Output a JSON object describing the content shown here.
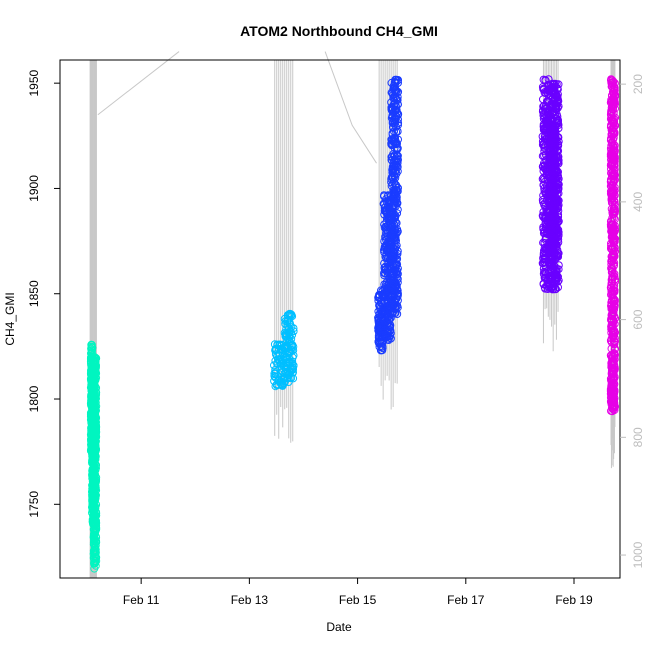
{
  "chart_data": {
    "type": "scatter",
    "title": "ATOM2 Northbound CH4_GMI",
    "xlabel": "Date",
    "ylabel": "CH4_GMI",
    "x_ticks": [
      "Feb 11",
      "Feb 13",
      "Feb 15",
      "Feb 17",
      "Feb 19"
    ],
    "x_tick_values_days": [
      11,
      13,
      15,
      17,
      19
    ],
    "xlim_days": [
      9.5,
      19.85
    ],
    "ylim": [
      1715,
      1961
    ],
    "y_ticks": [
      1750,
      1800,
      1850,
      1900,
      1950
    ],
    "right_axis": {
      "ticks": [
        200,
        400,
        600,
        800,
        1000
      ],
      "lim": [
        1039,
        159
      ],
      "color": "#bdbdbd"
    },
    "grid": false,
    "series": [
      {
        "color": "#00f5c0",
        "x_range_days": [
          10.05,
          10.18
        ],
        "y_range": [
          1719,
          1826
        ],
        "segments": [
          {
            "x": [
              10.07,
              10.1
            ],
            "y": [
              1775,
              1826
            ]
          },
          {
            "x": [
              10.09,
              10.13
            ],
            "y": [
              1740,
              1812
            ]
          },
          {
            "x": [
              10.12,
              10.17
            ],
            "y": [
              1719,
              1820
            ]
          }
        ]
      },
      {
        "color": "#00bfff",
        "x_range_days": [
          13.45,
          13.82
        ],
        "y_range": [
          1806,
          1841
        ],
        "segments": [
          {
            "x": [
              13.45,
              13.65
            ],
            "y": [
              1806,
              1826
            ]
          },
          {
            "x": [
              13.65,
              13.82
            ],
            "y": [
              1808,
              1841
            ]
          }
        ]
      },
      {
        "color": "#1a3cff",
        "x_range_days": [
          15.38,
          15.75
        ],
        "y_range": [
          1823,
          1952
        ],
        "segments": [
          {
            "x": [
              15.38,
              15.48
            ],
            "y": [
              1823,
              1852
            ]
          },
          {
            "x": [
              15.48,
              15.62
            ],
            "y": [
              1828,
              1897
            ]
          },
          {
            "x": [
              15.62,
              15.75
            ],
            "y": [
              1840,
              1952
            ]
          }
        ]
      },
      {
        "color": "#6a00ff",
        "x_range_days": [
          18.42,
          18.72
        ],
        "y_range": [
          1852,
          1952
        ],
        "segments": [
          {
            "x": [
              18.42,
              18.6
            ],
            "y": [
              1852,
              1952
            ]
          },
          {
            "x": [
              18.55,
              18.65
            ],
            "y": [
              1862,
              1930
            ]
          },
          {
            "x": [
              18.6,
              18.72
            ],
            "y": [
              1852,
              1950
            ]
          }
        ]
      },
      {
        "color": "#e600e6",
        "x_range_days": [
          19.68,
          19.76
        ],
        "y_range": [
          1794,
          1952
        ],
        "segments": [
          {
            "x": [
              19.68,
              19.76
            ],
            "y": [
              1794,
              1952
            ]
          }
        ]
      }
    ]
  }
}
